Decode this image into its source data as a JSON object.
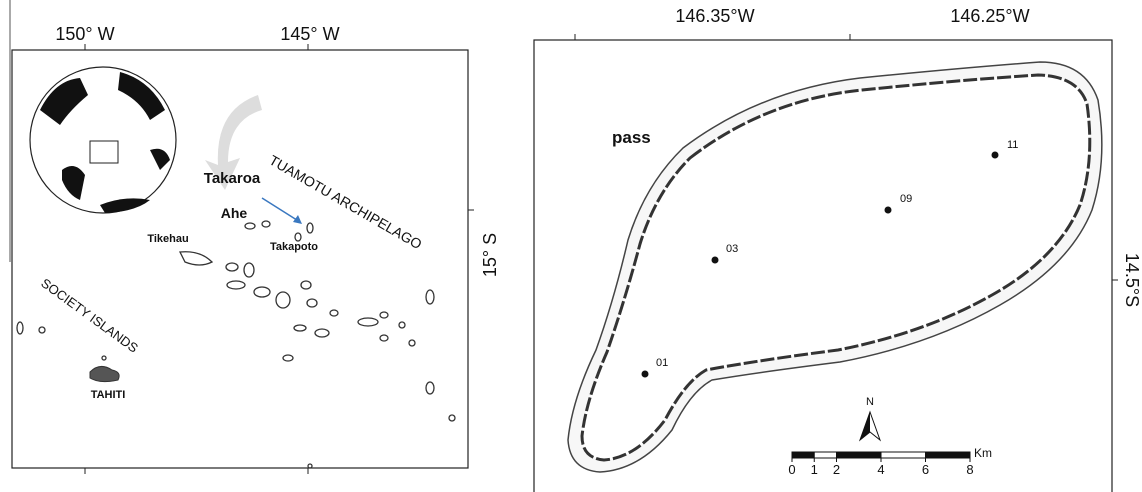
{
  "left_map": {
    "longitude_labels": [
      "150° W",
      "145° W"
    ],
    "latitude_label": "15° S",
    "place_labels": [
      "Takaroa",
      "Ahe",
      "Tikehau",
      "Takapoto",
      "TUAMOTU ARCHIPELAGO",
      "SOCIETY ISLANDS",
      "TAHITI"
    ]
  },
  "right_map": {
    "longitude_labels": [
      "146.35°W",
      "146.25°W"
    ],
    "latitude_label": "14.5°S",
    "pass_label": "pass",
    "stations": [
      "01",
      "03",
      "09",
      "11"
    ],
    "north_label": "N",
    "scale_unit": "Km",
    "scale_ticks": [
      0,
      1,
      2,
      4,
      6,
      8
    ]
  }
}
